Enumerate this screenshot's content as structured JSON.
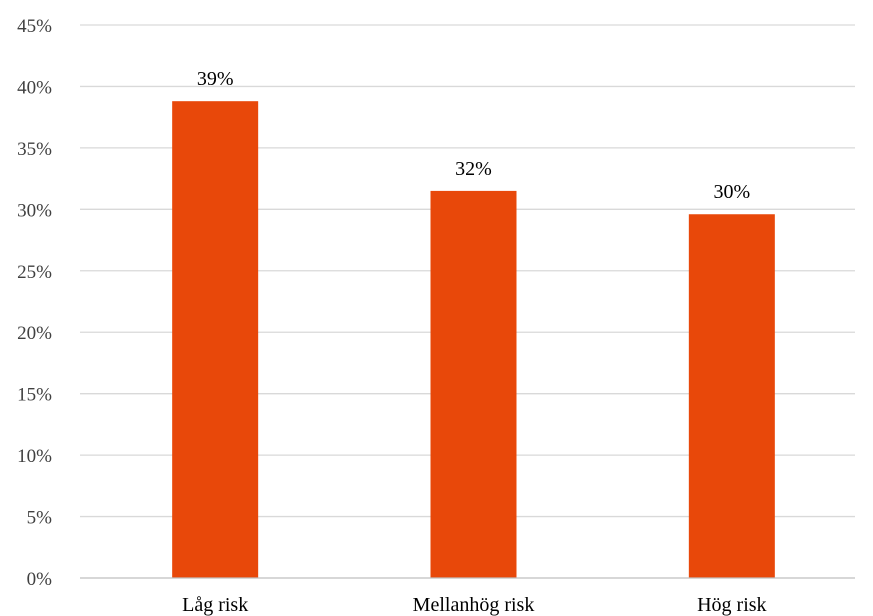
{
  "chart_data": {
    "type": "bar",
    "categories": [
      "Låg risk",
      "Mellanhög risk",
      "Hög risk"
    ],
    "values": [
      0.388,
      0.315,
      0.296
    ],
    "data_labels": [
      "39%",
      "32%",
      "30%"
    ],
    "ylim": [
      0,
      0.45
    ],
    "y_ticks": [
      0,
      0.05,
      0.1,
      0.15,
      0.2,
      0.25,
      0.3,
      0.35,
      0.4,
      0.45
    ],
    "y_tick_labels": [
      "0%",
      "5%",
      "10%",
      "15%",
      "20%",
      "25%",
      "30%",
      "35%",
      "40%",
      "45%"
    ],
    "grid": true,
    "bar_color": "#e8480a",
    "title": "",
    "xlabel": "",
    "ylabel": ""
  }
}
